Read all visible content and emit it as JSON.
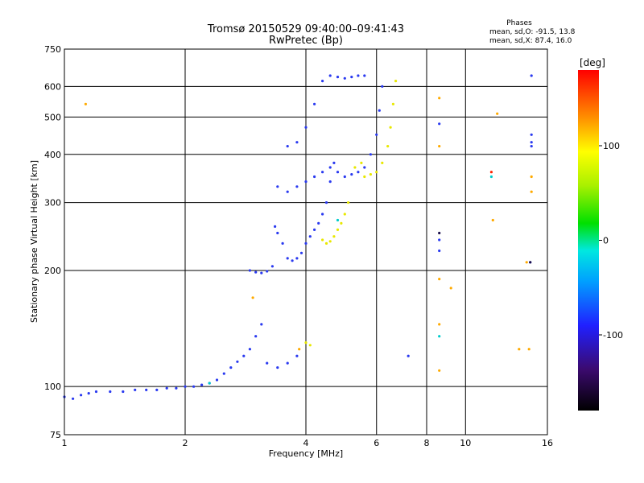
{
  "chart_data": {
    "type": "scatter",
    "title": "Tromsø 20150529 09:40:00–09:41:43",
    "subtitle": "RwPretec (Bp)",
    "xlabel": "Frequency [MHz]",
    "ylabel": "Stationary phase Virtual Height [km]",
    "xscale": "log",
    "yscale": "log",
    "xlim": [
      1,
      16
    ],
    "ylim": [
      75,
      750
    ],
    "x_ticks": [
      1,
      2,
      4,
      6,
      8,
      10,
      16
    ],
    "y_ticks": [
      75,
      100,
      200,
      300,
      400,
      500,
      600,
      750
    ],
    "grid": true,
    "phases_box": {
      "title": "Phases",
      "line_o": "mean, sd,O: -91.5, 13.8",
      "line_x": "mean, sd,X:  87.4, 16.0"
    },
    "colorbar": {
      "label": "[deg]",
      "range": [
        -180,
        180
      ],
      "ticks": [
        100,
        0,
        -100
      ]
    },
    "series": [
      {
        "phase": -100,
        "color": "#2a3af0",
        "points": [
          [
            1.0,
            94
          ],
          [
            1.05,
            93
          ],
          [
            1.1,
            95
          ],
          [
            1.15,
            96
          ],
          [
            1.2,
            97
          ],
          [
            1.3,
            97
          ],
          [
            1.4,
            97
          ],
          [
            1.5,
            98
          ],
          [
            1.6,
            98
          ],
          [
            1.7,
            98
          ],
          [
            1.8,
            99
          ],
          [
            1.9,
            99
          ],
          [
            2.0,
            100
          ],
          [
            2.1,
            100
          ],
          [
            2.2,
            101
          ],
          [
            2.3,
            102
          ],
          [
            2.4,
            104
          ],
          [
            2.5,
            108
          ],
          [
            2.6,
            112
          ],
          [
            2.7,
            116
          ],
          [
            2.8,
            120
          ],
          [
            2.9,
            125
          ],
          [
            3.0,
            135
          ],
          [
            3.1,
            145
          ],
          [
            3.2,
            115
          ],
          [
            3.4,
            112
          ],
          [
            3.6,
            115
          ],
          [
            3.8,
            120
          ],
          [
            2.9,
            200
          ],
          [
            3.0,
            198
          ],
          [
            3.1,
            197
          ],
          [
            3.2,
            199
          ],
          [
            3.3,
            205
          ],
          [
            3.35,
            260
          ],
          [
            3.4,
            250
          ],
          [
            3.5,
            235
          ],
          [
            3.6,
            215
          ],
          [
            3.7,
            212
          ],
          [
            3.8,
            215
          ],
          [
            3.9,
            222
          ],
          [
            4.0,
            235
          ],
          [
            4.1,
            245
          ],
          [
            4.2,
            255
          ],
          [
            4.3,
            265
          ],
          [
            4.4,
            280
          ],
          [
            4.5,
            300
          ],
          [
            4.6,
            340
          ],
          [
            4.7,
            380
          ],
          [
            3.4,
            330
          ],
          [
            3.6,
            320
          ],
          [
            3.8,
            330
          ],
          [
            4.0,
            340
          ],
          [
            4.2,
            350
          ],
          [
            4.4,
            360
          ],
          [
            4.6,
            370
          ],
          [
            4.8,
            360
          ],
          [
            5.0,
            350
          ],
          [
            5.2,
            355
          ],
          [
            5.4,
            360
          ],
          [
            5.6,
            370
          ],
          [
            5.8,
            400
          ],
          [
            6.0,
            450
          ],
          [
            6.1,
            520
          ],
          [
            6.2,
            600
          ],
          [
            3.6,
            420
          ],
          [
            3.8,
            430
          ],
          [
            4.0,
            470
          ],
          [
            4.2,
            540
          ],
          [
            4.4,
            620
          ],
          [
            4.6,
            640
          ],
          [
            4.8,
            635
          ],
          [
            5.0,
            630
          ],
          [
            5.2,
            635
          ],
          [
            5.4,
            640
          ],
          [
            5.6,
            640
          ],
          [
            7.2,
            120
          ],
          [
            8.6,
            480
          ],
          [
            8.6,
            240
          ],
          [
            8.6,
            225
          ],
          [
            14.5,
            210
          ],
          [
            14.6,
            640
          ],
          [
            14.6,
            450
          ],
          [
            14.6,
            430
          ],
          [
            14.6,
            420
          ]
        ]
      },
      {
        "phase": 80,
        "color": "#e8e800",
        "points": [
          [
            4.4,
            240
          ],
          [
            4.5,
            235
          ],
          [
            4.6,
            238
          ],
          [
            4.7,
            245
          ],
          [
            4.8,
            255
          ],
          [
            4.9,
            265
          ],
          [
            5.0,
            280
          ],
          [
            5.1,
            300
          ],
          [
            5.6,
            350
          ],
          [
            5.8,
            355
          ],
          [
            6.0,
            360
          ],
          [
            6.2,
            380
          ],
          [
            6.4,
            420
          ],
          [
            6.5,
            470
          ],
          [
            6.6,
            540
          ],
          [
            6.7,
            620
          ],
          [
            4.0,
            130
          ],
          [
            4.1,
            128
          ],
          [
            5.3,
            370
          ],
          [
            5.5,
            380
          ]
        ]
      },
      {
        "phase": 130,
        "color": "#ffaa00",
        "points": [
          [
            1.13,
            540
          ],
          [
            8.6,
            560
          ],
          [
            8.6,
            420
          ],
          [
            8.6,
            145
          ],
          [
            8.6,
            190
          ],
          [
            8.6,
            110
          ],
          [
            9.2,
            180
          ],
          [
            11.7,
            270
          ],
          [
            12.0,
            510
          ],
          [
            13.6,
            125
          ],
          [
            14.2,
            210
          ],
          [
            14.4,
            125
          ],
          [
            14.6,
            320
          ],
          [
            14.6,
            350
          ],
          [
            2.95,
            170
          ],
          [
            3.85,
            125
          ]
        ]
      },
      {
        "phase": -180,
        "color": "#1b0f4a",
        "points": [
          [
            8.6,
            250
          ],
          [
            14.5,
            210
          ]
        ]
      },
      {
        "phase": -50,
        "color": "#00cccc",
        "points": [
          [
            11.6,
            350
          ],
          [
            8.6,
            135
          ],
          [
            4.8,
            270
          ],
          [
            2.3,
            102
          ]
        ]
      },
      {
        "phase": 170,
        "color": "#ff2200",
        "points": [
          [
            11.6,
            360
          ]
        ]
      }
    ]
  }
}
